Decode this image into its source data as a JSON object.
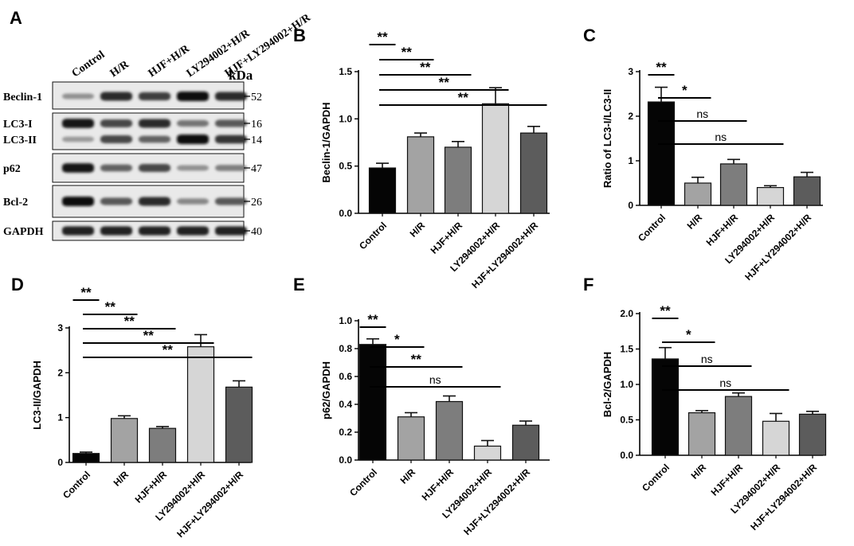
{
  "panel_labels": [
    "A",
    "B",
    "C",
    "D",
    "E",
    "F"
  ],
  "colors": {
    "bar_fills": [
      "#050505",
      "#a3a3a3",
      "#7d7d7d",
      "#d6d6d6",
      "#5c5c5c"
    ],
    "text": "#000000"
  },
  "blot": {
    "lanes": [
      "Control",
      "H/R",
      "HJF+H/R",
      "LY294002+H/R",
      "HJF+LY294002+H/R"
    ],
    "kda_label": "kDa",
    "rows": [
      {
        "proteins": [
          "Beclin-1"
        ],
        "markers": [
          "52"
        ],
        "intensity": [
          [
            0.3,
            0.85,
            0.75,
            1.0,
            0.85
          ]
        ]
      },
      {
        "proteins": [
          "LC3-I",
          "LC3-II"
        ],
        "markers": [
          "16",
          "14"
        ],
        "intensity": [
          [
            0.95,
            0.7,
            0.85,
            0.45,
            0.6
          ],
          [
            0.25,
            0.7,
            0.55,
            1.0,
            0.8
          ]
        ]
      },
      {
        "proteins": [
          "p62"
        ],
        "markers": [
          "47"
        ],
        "intensity": [
          [
            0.95,
            0.55,
            0.7,
            0.3,
            0.4
          ]
        ]
      },
      {
        "proteins": [
          "Bcl-2"
        ],
        "markers": [
          "26"
        ],
        "intensity": [
          [
            1.0,
            0.6,
            0.85,
            0.35,
            0.6
          ]
        ]
      },
      {
        "proteins": [
          "GAPDH"
        ],
        "markers": [
          "40"
        ],
        "intensity": [
          [
            0.9,
            0.9,
            0.9,
            0.9,
            0.9
          ]
        ]
      }
    ]
  },
  "chart_data": [
    {
      "panel": "B",
      "type": "bar",
      "categories": [
        "Control",
        "H/R",
        "HJF+H/R",
        "LY294002+H/R",
        "HJF+LY294002+H/R"
      ],
      "values": [
        0.48,
        0.81,
        0.7,
        1.16,
        0.85
      ],
      "errors": [
        0.05,
        0.04,
        0.06,
        0.17,
        0.07
      ],
      "ylabel": "Beclin-1/GAPDH",
      "ylim": [
        0,
        1.5
      ],
      "yticks": [
        "0.0",
        "0.5",
        "1.0",
        "1.5"
      ],
      "significance": [
        {
          "from": 0,
          "to": 1,
          "label": "**"
        },
        {
          "from": 1,
          "to": 2,
          "label": "**"
        },
        {
          "from": 1,
          "to": 3,
          "label": "**"
        },
        {
          "from": 1,
          "to": 4,
          "label": "**"
        },
        {
          "from": 1,
          "to": 5,
          "label": "**"
        }
      ]
    },
    {
      "panel": "C",
      "type": "bar",
      "categories": [
        "Control",
        "H/R",
        "HJF+H/R",
        "LY294002+H/R",
        "HJF+LY294002+H/R"
      ],
      "values": [
        2.32,
        0.5,
        0.93,
        0.4,
        0.64
      ],
      "errors": [
        0.33,
        0.13,
        0.1,
        0.04,
        0.1
      ],
      "ylabel": "Ratio of LC3-I/LC3-II",
      "ylim": [
        0,
        3
      ],
      "yticks": [
        "0",
        "1",
        "2",
        "3"
      ],
      "significance": [
        {
          "from": 0,
          "to": 1,
          "label": "**"
        },
        {
          "from": 1,
          "to": 2,
          "label": "*"
        },
        {
          "from": 1,
          "to": 3,
          "label": "ns"
        },
        {
          "from": 1,
          "to": 4,
          "label": "ns"
        }
      ]
    },
    {
      "panel": "D",
      "type": "bar",
      "categories": [
        "Control",
        "H/R",
        "HJF+H/R",
        "LY294002+H/R",
        "HJF+LY294002+H/R"
      ],
      "values": [
        0.2,
        0.98,
        0.76,
        2.58,
        1.68
      ],
      "errors": [
        0.03,
        0.06,
        0.04,
        0.27,
        0.14
      ],
      "ylabel": "LC3-II/GAPDH",
      "ylim": [
        0,
        3
      ],
      "yticks": [
        "0",
        "1",
        "2",
        "3"
      ],
      "significance": [
        {
          "from": 0,
          "to": 1,
          "label": "**"
        },
        {
          "from": 1,
          "to": 2,
          "label": "**"
        },
        {
          "from": 1,
          "to": 3,
          "label": "**"
        },
        {
          "from": 1,
          "to": 4,
          "label": "**"
        },
        {
          "from": 1,
          "to": 5,
          "label": "**"
        }
      ]
    },
    {
      "panel": "E",
      "type": "bar",
      "categories": [
        "Control",
        "H/R",
        "HJF+H/R",
        "LY294002+H/R",
        "HJF+LY294002+H/R"
      ],
      "values": [
        0.83,
        0.31,
        0.42,
        0.1,
        0.25
      ],
      "errors": [
        0.04,
        0.03,
        0.04,
        0.04,
        0.03
      ],
      "ylabel": "p62/GAPDH",
      "ylim": [
        0,
        1.0
      ],
      "yticks": [
        "0.0",
        "0.2",
        "0.4",
        "0.6",
        "0.8",
        "1.0"
      ],
      "significance": [
        {
          "from": 0,
          "to": 1,
          "label": "**"
        },
        {
          "from": 1,
          "to": 2,
          "label": "*"
        },
        {
          "from": 1,
          "to": 3,
          "label": "**"
        },
        {
          "from": 1,
          "to": 4,
          "label": "ns"
        }
      ]
    },
    {
      "panel": "F",
      "type": "bar",
      "categories": [
        "Control",
        "H/R",
        "HJF+H/R",
        "LY294002+H/R",
        "HJF+LY294002+H/R"
      ],
      "values": [
        1.36,
        0.6,
        0.83,
        0.48,
        0.58
      ],
      "errors": [
        0.16,
        0.03,
        0.05,
        0.11,
        0.04
      ],
      "ylabel": "Bcl-2/GAPDH",
      "ylim": [
        0,
        2.0
      ],
      "yticks": [
        "0.0",
        "0.5",
        "1.0",
        "1.5",
        "2.0"
      ],
      "significance": [
        {
          "from": 0,
          "to": 1,
          "label": "**"
        },
        {
          "from": 1,
          "to": 2,
          "label": "*"
        },
        {
          "from": 1,
          "to": 3,
          "label": "ns"
        },
        {
          "from": 1,
          "to": 4,
          "label": "ns"
        }
      ]
    }
  ]
}
